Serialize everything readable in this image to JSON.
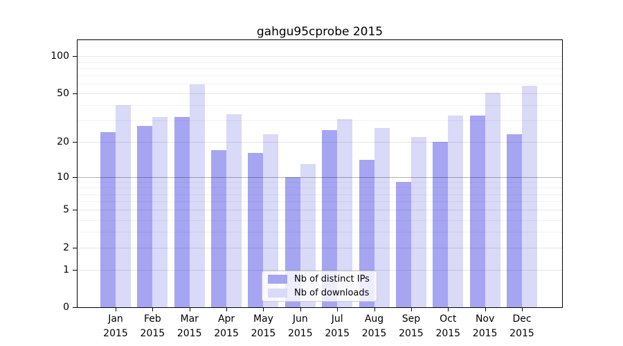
{
  "chart_data": {
    "type": "bar",
    "title": "gahgu95cprobe 2015",
    "categories": [
      "Jan",
      "Feb",
      "Mar",
      "Apr",
      "May",
      "Jun",
      "Jul",
      "Aug",
      "Sep",
      "Oct",
      "Nov",
      "Dec"
    ],
    "year_label": "2015",
    "series": [
      {
        "name": "Nb of distinct IPs",
        "color": "#a5a5f2",
        "values": [
          24,
          27,
          32,
          17,
          16,
          10,
          25,
          14,
          9,
          20,
          33,
          23
        ]
      },
      {
        "name": "Nb of downloads",
        "color": "#d9d9f8",
        "values": [
          40,
          32,
          59,
          34,
          23,
          13,
          31,
          26,
          22,
          33,
          51,
          58
        ]
      }
    ],
    "yscale": "log1p",
    "ylim": [
      0,
      135
    ],
    "y_tick_values": [
      0,
      1,
      2,
      5,
      10,
      20,
      50,
      100
    ],
    "y_minor_gridlines": [
      3,
      4,
      6,
      7,
      8,
      9,
      30,
      40,
      60,
      70,
      80,
      90
    ],
    "grid": true,
    "legend_position": "lower center"
  }
}
